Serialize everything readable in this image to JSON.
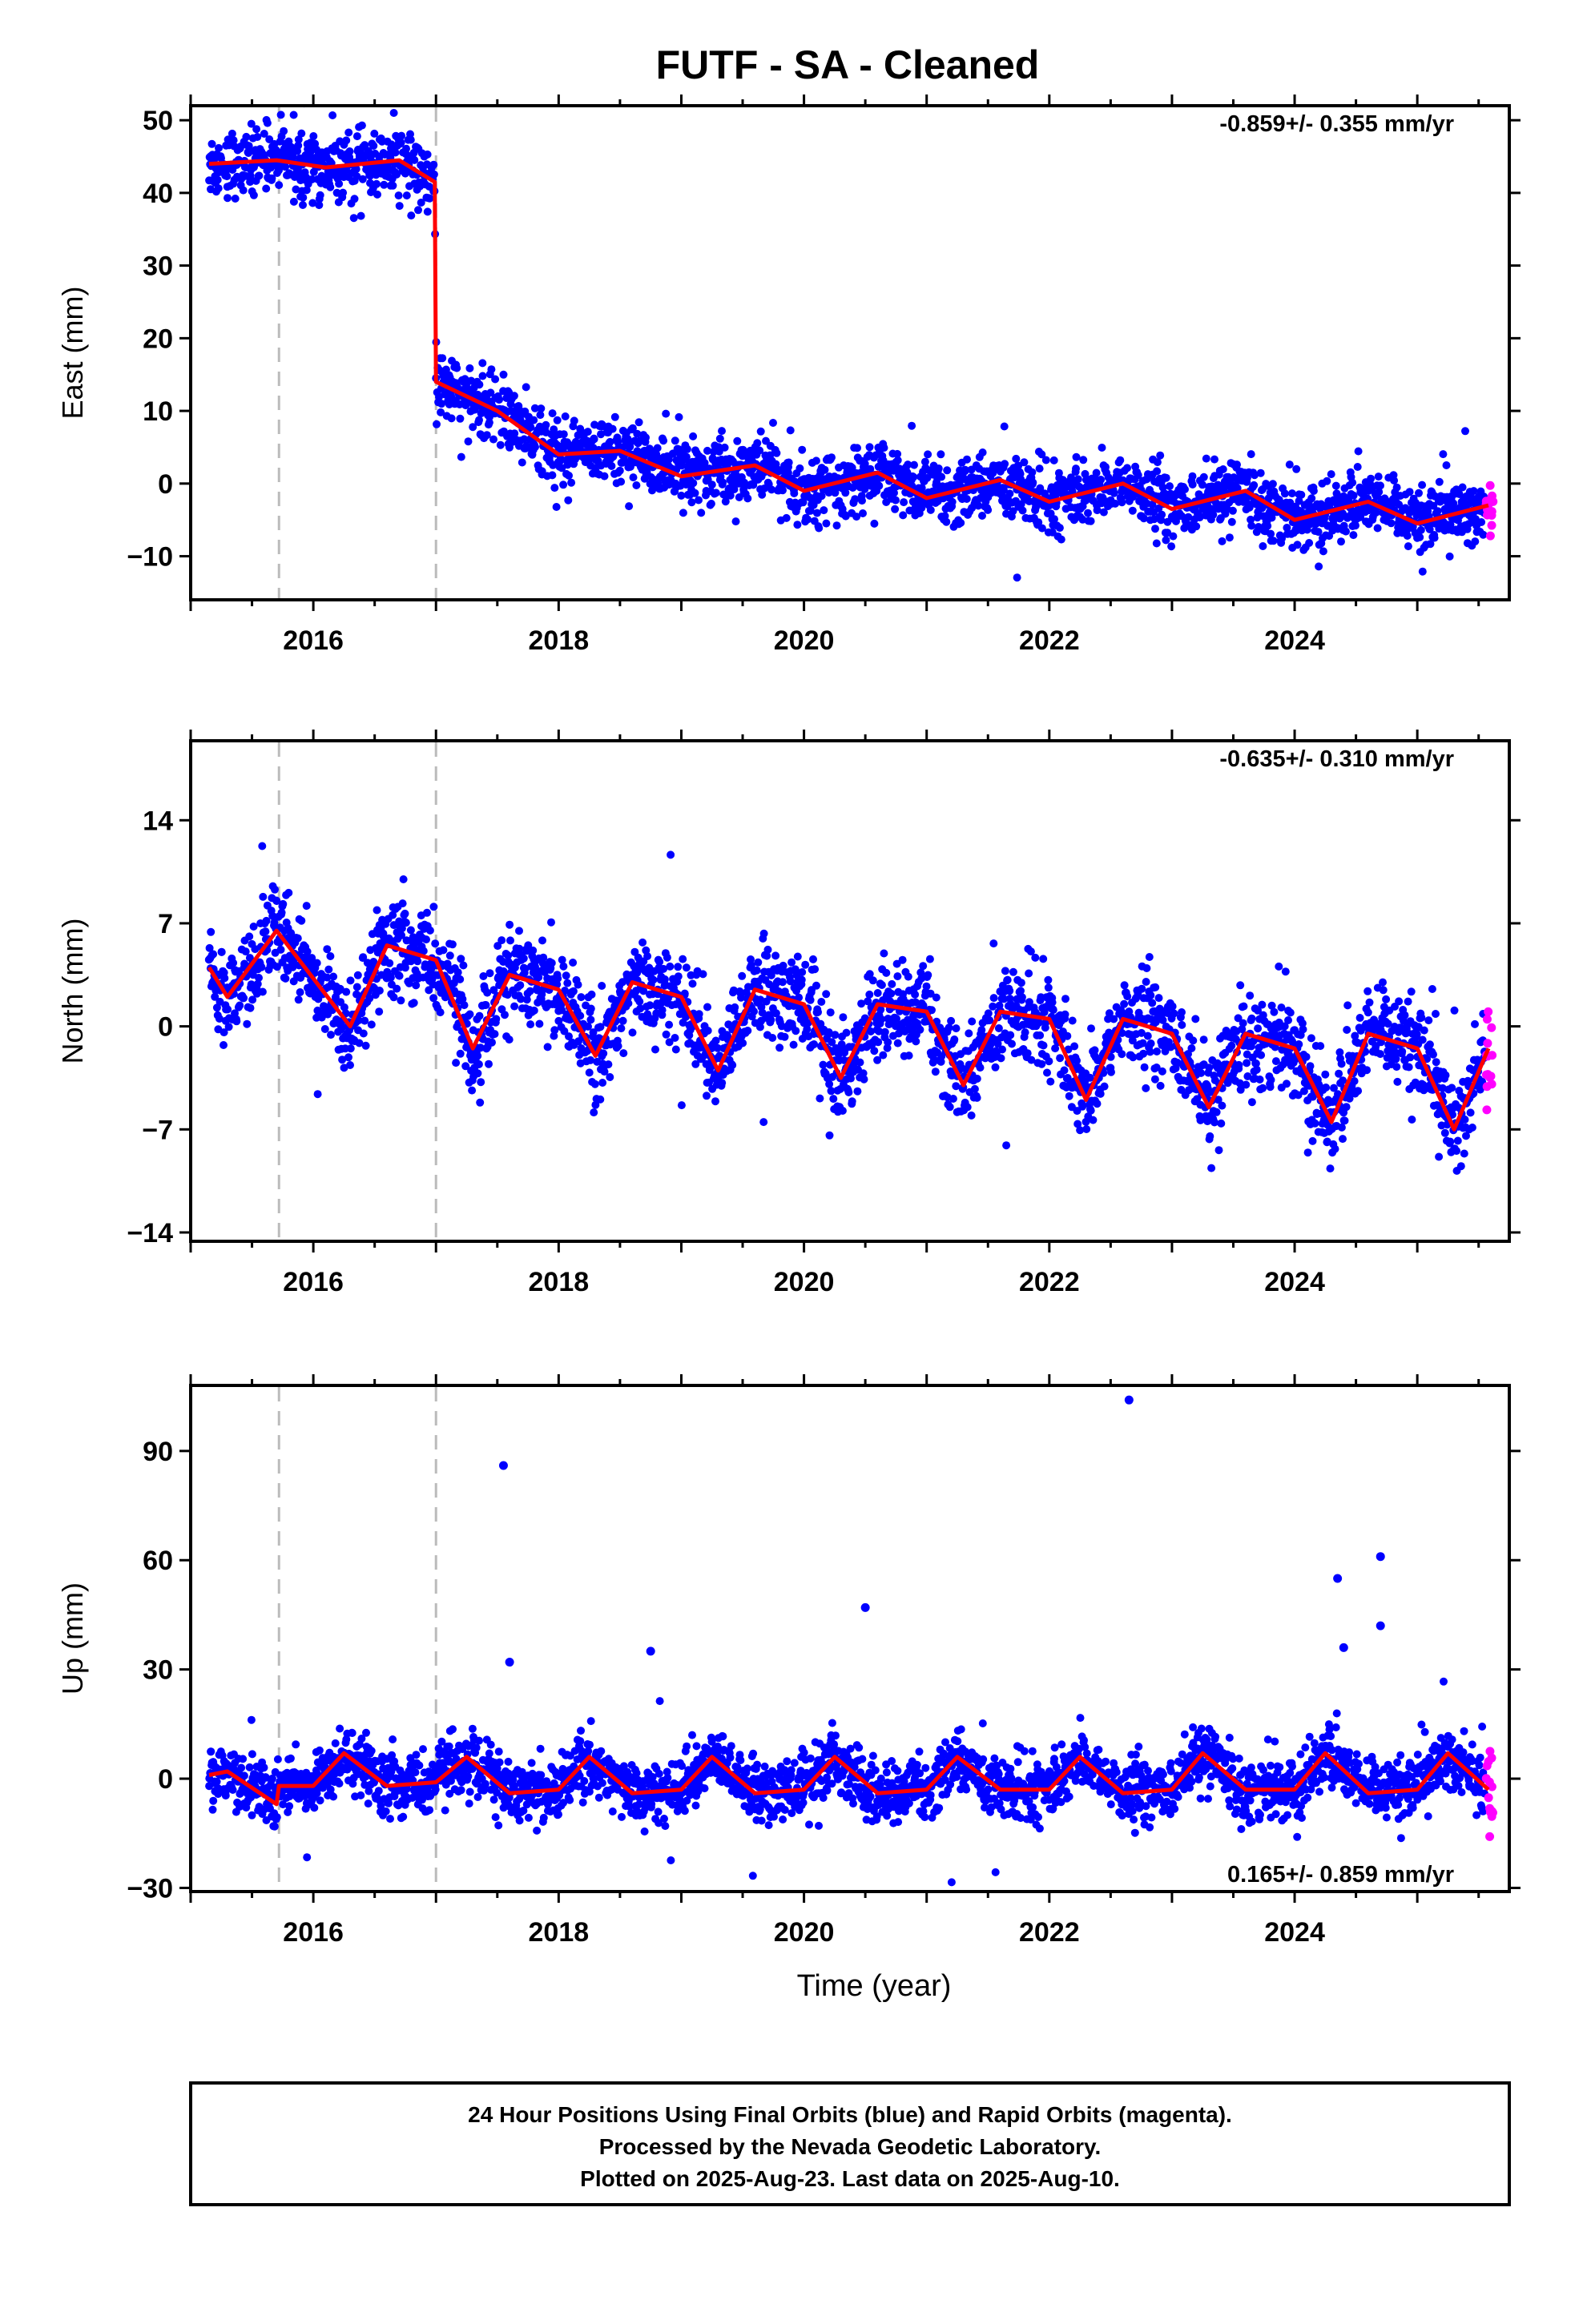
{
  "title": "FUTF  - SA - Cleaned",
  "colors": {
    "final": "#0000ff",
    "rapid": "#ff00ff",
    "model": "#ff0000",
    "offset": "#bbbbbb"
  },
  "chart_data": [
    {
      "type": "scatter",
      "ylabel": "East (mm)",
      "xlabel": "",
      "xlim": [
        2015.0,
        2025.75
      ],
      "ylim": [
        -16,
        52
      ],
      "yticks": [
        -10,
        0,
        10,
        20,
        30,
        40,
        50
      ],
      "xticks": [
        2016,
        2018,
        2020,
        2022,
        2024
      ],
      "offsets": [
        2015.72,
        2017.0
      ],
      "annotation": "-0.859+/- 0.355 mm/yr",
      "annotation_pos": "top-right",
      "grid": false,
      "model": {
        "x": [
          2015.15,
          2015.7,
          2016.1,
          2016.7,
          2016.99,
          2017.0,
          2017.5,
          2018.0,
          2018.5,
          2019.0,
          2019.6,
          2020.0,
          2020.6,
          2021.0,
          2021.6,
          2022.0,
          2022.6,
          2023.0,
          2023.6,
          2024.0,
          2024.6,
          2025.0,
          2025.58
        ],
        "y": [
          44,
          44.5,
          43.5,
          44.5,
          41.5,
          14,
          10,
          4,
          4.5,
          1,
          2.5,
          -1,
          1.5,
          -2,
          0.5,
          -2.5,
          0,
          -3.5,
          -1,
          -5,
          -2.5,
          -5.5,
          -3
        ]
      },
      "scatter": {
        "xrange": [
          2015.15,
          2025.55
        ],
        "spread": 2.2,
        "rapid_x": [
          2025.56,
          2025.62
        ]
      }
    },
    {
      "type": "scatter",
      "ylabel": "North (mm)",
      "xlabel": "",
      "xlim": [
        2015.0,
        2025.75
      ],
      "ylim": [
        -14.6,
        19.4
      ],
      "yticks": [
        -14,
        -7,
        0,
        7,
        14
      ],
      "xticks": [
        2016,
        2018,
        2020,
        2022,
        2024
      ],
      "offsets": [
        2015.72,
        2017.0
      ],
      "annotation": "-0.635+/- 0.310 mm/yr",
      "annotation_pos": "top-right",
      "grid": false,
      "model": {
        "x": [
          2015.15,
          2015.3,
          2015.7,
          2016.3,
          2016.6,
          2017.0,
          2017.3,
          2017.6,
          2018.0,
          2018.3,
          2018.6,
          2019.0,
          2019.3,
          2019.6,
          2020.0,
          2020.3,
          2020.6,
          2021.0,
          2021.3,
          2021.6,
          2022.0,
          2022.3,
          2022.6,
          2023.0,
          2023.3,
          2023.6,
          2024.0,
          2024.3,
          2024.6,
          2025.0,
          2025.3,
          2025.58
        ],
        "y": [
          4,
          2,
          6.5,
          0,
          5.5,
          4.5,
          -1.5,
          3.5,
          2.5,
          -2,
          3,
          2,
          -3,
          2.5,
          1.5,
          -3.5,
          1.5,
          1,
          -4,
          1,
          0.5,
          -5,
          0.5,
          -0.5,
          -5.5,
          -0.5,
          -1.5,
          -6.5,
          -0.5,
          -1.5,
          -7,
          -1.5
        ]
      },
      "scatter": {
        "xrange": [
          2015.15,
          2025.55
        ],
        "spread": 1.6,
        "rapid_x": [
          2025.56,
          2025.62
        ]
      }
    },
    {
      "type": "scatter",
      "ylabel": "Up (mm)",
      "xlabel": "Time (year)",
      "xlim": [
        2015.0,
        2025.75
      ],
      "ylim": [
        -31,
        108
      ],
      "yticks": [
        -30,
        0,
        30,
        60,
        90
      ],
      "xticks": [
        2016,
        2018,
        2020,
        2022,
        2024
      ],
      "offsets": [
        2015.72,
        2017.0
      ],
      "annotation": "0.165+/- 0.859 mm/yr",
      "annotation_pos": "bottom-right",
      "grid": false,
      "model": {
        "x": [
          2015.15,
          2015.3,
          2015.7,
          2015.72,
          2016.0,
          2016.25,
          2016.6,
          2016.99,
          2017.0,
          2017.25,
          2017.6,
          2018.0,
          2018.25,
          2018.6,
          2019.0,
          2019.25,
          2019.6,
          2020.0,
          2020.25,
          2020.6,
          2021.0,
          2021.25,
          2021.6,
          2022.0,
          2022.25,
          2022.6,
          2023.0,
          2023.25,
          2023.6,
          2024.0,
          2024.25,
          2024.6,
          2025.0,
          2025.25,
          2025.58
        ],
        "y": [
          1,
          2,
          -7,
          -2,
          -2,
          7,
          -2,
          -1,
          -1,
          6,
          -4,
          -3,
          6,
          -4,
          -3,
          6,
          -4,
          -3,
          6,
          -4,
          -3,
          6,
          -3,
          -3,
          6,
          -4,
          -3,
          7,
          -3,
          -3,
          7,
          -4,
          -3,
          7,
          -3
        ]
      },
      "scatter": {
        "xrange": [
          2015.15,
          2025.55
        ],
        "spread": 4.2,
        "rapid_x": [
          2025.56,
          2025.62
        ]
      },
      "outliers": [
        [
          2017.55,
          86
        ],
        [
          2017.6,
          32
        ],
        [
          2018.75,
          35
        ],
        [
          2020.5,
          47
        ],
        [
          2022.65,
          104
        ],
        [
          2024.35,
          55
        ],
        [
          2024.7,
          61
        ],
        [
          2024.7,
          42
        ],
        [
          2024.4,
          36
        ]
      ]
    }
  ],
  "footer": {
    "line1": "24 Hour Positions Using Final Orbits (blue) and Rapid Orbits (magenta).",
    "line2": "Processed by the Nevada Geodetic Laboratory.",
    "line3": "Plotted on 2025-Aug-23. Last data on 2025-Aug-10."
  }
}
